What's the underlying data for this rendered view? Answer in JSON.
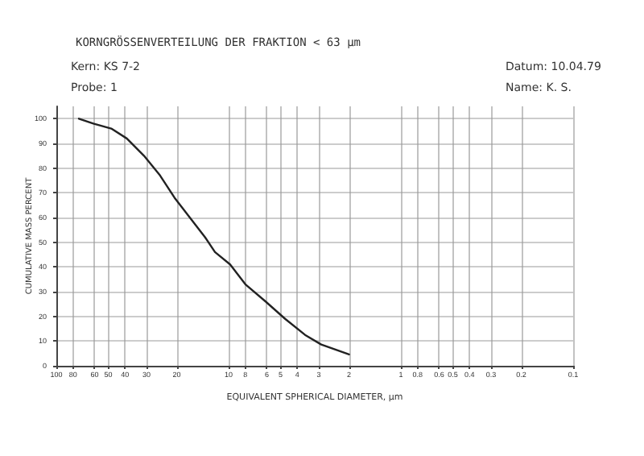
{
  "chart_data": {
    "type": "line",
    "title": "KORNGRÖSSENVERTEILUNG DER FRAKTION < 63 µm",
    "annotations": [
      "Kern: KS 7-2",
      "Probe: 1",
      "Datum: 10.04.79",
      "Name: K. S."
    ],
    "xlabel": "EQUIVALENT SPHERICAL DIAMETER, µm",
    "ylabel": "CUMULATIVE MASS PERCENT",
    "log": "x",
    "grid": true,
    "marker": "none",
    "line_style": "solid",
    "xlim": [
      100,
      0.1
    ],
    "xticks": [
      100,
      80,
      60,
      50,
      40,
      30,
      20,
      10,
      8,
      6,
      5,
      4,
      3,
      2,
      1,
      0.8,
      0.6,
      0.5,
      0.4,
      0.3,
      0.2,
      0.1
    ],
    "ylim": [
      0,
      105
    ],
    "yticks": [
      0,
      10,
      20,
      30,
      40,
      50,
      60,
      70,
      80,
      90,
      100
    ],
    "series": [
      {
        "color": "#222222",
        "x": [
          74,
          61,
          48,
          39,
          31,
          25,
          20.6,
          16.8,
          13.7,
          12,
          9.8,
          8,
          6.1,
          4.7,
          3.6,
          2.9,
          2.0
        ],
        "values": [
          100,
          98,
          96,
          92,
          85,
          77,
          68,
          60,
          52,
          46,
          41,
          33,
          26,
          19,
          12.5,
          8.6,
          4.6
        ]
      }
    ]
  }
}
